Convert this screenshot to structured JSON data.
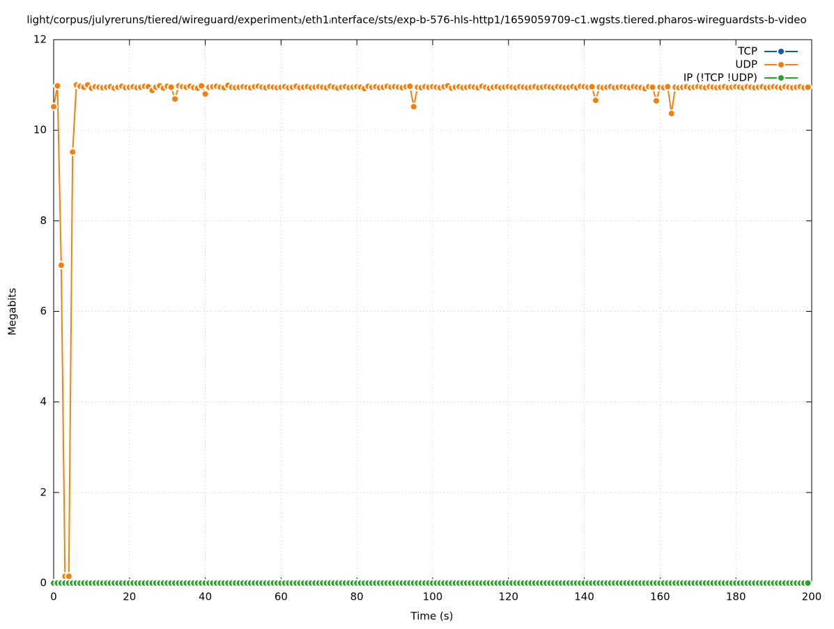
{
  "chart_data": {
    "type": "line",
    "title": "light/corpus/julyreruns/tiered/wireguard/experiment₃/eth1ᵢnterface/sts/exp-b-576-hls-http1/1659059709-c1.wgsts.tiered.pharos-wireguardsts-b-video",
    "x_label": "Time (s)",
    "y_label": "Megabits",
    "x": [
      0,
      1,
      2,
      3,
      4,
      5,
      6,
      7,
      8,
      9,
      10,
      11,
      12,
      13,
      14,
      15,
      16,
      17,
      18,
      19,
      20,
      21,
      22,
      23,
      24,
      25,
      26,
      27,
      28,
      29,
      30,
      31,
      32,
      33,
      34,
      35,
      36,
      37,
      38,
      39,
      40,
      41,
      42,
      43,
      44,
      45,
      46,
      47,
      48,
      49,
      50,
      51,
      52,
      53,
      54,
      55,
      56,
      57,
      58,
      59,
      60,
      61,
      62,
      63,
      64,
      65,
      66,
      67,
      68,
      69,
      70,
      71,
      72,
      73,
      74,
      75,
      76,
      77,
      78,
      79,
      80,
      81,
      82,
      83,
      84,
      85,
      86,
      87,
      88,
      89,
      90,
      91,
      92,
      93,
      94,
      95,
      96,
      97,
      98,
      99,
      100,
      101,
      102,
      103,
      104,
      105,
      106,
      107,
      108,
      109,
      110,
      111,
      112,
      113,
      114,
      115,
      116,
      117,
      118,
      119,
      120,
      121,
      122,
      123,
      124,
      125,
      126,
      127,
      128,
      129,
      130,
      131,
      132,
      133,
      134,
      135,
      136,
      137,
      138,
      139,
      140,
      141,
      142,
      143,
      144,
      145,
      146,
      147,
      148,
      149,
      150,
      151,
      152,
      153,
      154,
      155,
      156,
      157,
      158,
      159,
      160,
      161,
      162,
      163,
      164,
      165,
      166,
      167,
      168,
      169,
      170,
      171,
      172,
      173,
      174,
      175,
      176,
      177,
      178,
      179,
      180,
      181,
      182,
      183,
      184,
      185,
      186,
      187,
      188,
      189,
      190,
      191,
      192,
      193,
      194,
      195,
      196,
      197,
      198,
      199
    ],
    "series": [
      {
        "name": "TCP",
        "color": "#0060ad",
        "values": [
          0,
          0,
          0,
          0,
          0,
          0,
          0,
          0,
          0,
          0,
          0,
          0,
          0,
          0,
          0,
          0,
          0,
          0,
          0,
          0,
          0,
          0,
          0,
          0,
          0,
          0,
          0,
          0,
          0,
          0,
          0,
          0,
          0,
          0,
          0,
          0,
          0,
          0,
          0,
          0,
          0,
          0,
          0,
          0,
          0,
          0,
          0,
          0,
          0,
          0,
          0,
          0,
          0,
          0,
          0,
          0,
          0,
          0,
          0,
          0,
          0,
          0,
          0,
          0,
          0,
          0,
          0,
          0,
          0,
          0,
          0,
          0,
          0,
          0,
          0,
          0,
          0,
          0,
          0,
          0,
          0,
          0,
          0,
          0,
          0,
          0,
          0,
          0,
          0,
          0,
          0,
          0,
          0,
          0,
          0,
          0,
          0,
          0,
          0,
          0,
          0,
          0,
          0,
          0,
          0,
          0,
          0,
          0,
          0,
          0,
          0,
          0,
          0,
          0,
          0,
          0,
          0,
          0,
          0,
          0,
          0,
          0,
          0,
          0,
          0,
          0,
          0,
          0,
          0,
          0,
          0,
          0,
          0,
          0,
          0,
          0,
          0,
          0,
          0,
          0,
          0,
          0,
          0,
          0,
          0,
          0,
          0,
          0,
          0,
          0,
          0,
          0,
          0,
          0,
          0,
          0,
          0,
          0,
          0,
          0,
          0,
          0,
          0,
          0,
          0,
          0,
          0,
          0,
          0,
          0,
          0,
          0,
          0,
          0,
          0,
          0,
          0,
          0,
          0,
          0,
          0,
          0,
          0,
          0,
          0,
          0,
          0,
          0,
          0,
          0,
          0,
          0,
          0,
          0,
          0,
          0,
          0,
          0,
          0,
          0
        ]
      },
      {
        "name": "UDP",
        "color": "#f57f0e",
        "values": [
          10.52,
          10.98,
          7.02,
          0.15,
          0.15,
          9.52,
          11.0,
          10.97,
          10.95,
          11.0,
          10.93,
          10.96,
          10.95,
          10.94,
          10.95,
          10.96,
          10.93,
          10.95,
          10.97,
          10.94,
          10.95,
          10.96,
          10.94,
          10.95,
          10.97,
          10.96,
          10.88,
          10.95,
          10.98,
          10.93,
          10.97,
          10.95,
          10.69,
          10.98,
          10.96,
          10.95,
          10.97,
          10.94,
          10.93,
          10.98,
          10.8,
          10.95,
          10.96,
          10.97,
          10.95,
          10.94,
          10.99,
          10.95,
          10.94,
          10.95,
          10.96,
          10.95,
          10.94,
          10.96,
          10.97,
          10.95,
          10.94,
          10.96,
          10.95,
          10.94,
          10.95,
          10.96,
          10.94,
          10.95,
          10.97,
          10.94,
          10.95,
          10.96,
          10.94,
          10.95,
          10.96,
          10.95,
          10.94,
          10.97,
          10.95,
          10.93,
          10.95,
          10.96,
          10.94,
          10.95,
          10.96,
          10.95,
          10.92,
          10.97,
          10.95,
          10.96,
          10.94,
          10.95,
          10.97,
          10.95,
          10.96,
          10.95,
          10.94,
          10.96,
          10.97,
          10.52,
          10.95,
          10.94,
          10.96,
          10.95,
          10.96,
          10.95,
          10.94,
          10.96,
          10.98,
          10.93,
          10.95,
          10.96,
          10.94,
          10.95,
          10.96,
          10.95,
          10.94,
          10.97,
          10.95,
          10.93,
          10.95,
          10.96,
          10.94,
          10.95,
          10.96,
          10.95,
          10.94,
          10.96,
          10.95,
          10.94,
          10.95,
          10.96,
          10.94,
          10.95,
          10.96,
          10.95,
          10.94,
          10.96,
          10.95,
          10.94,
          10.95,
          10.96,
          10.94,
          10.97,
          10.96,
          10.95,
          10.96,
          10.66,
          10.95,
          10.94,
          10.95,
          10.96,
          10.94,
          10.95,
          10.96,
          10.95,
          10.94,
          10.96,
          10.95,
          10.94,
          10.92,
          10.96,
          10.95,
          10.65,
          10.95,
          10.94,
          10.96,
          10.37,
          10.95,
          10.94,
          10.95,
          10.96,
          10.94,
          10.95,
          10.96,
          10.95,
          10.94,
          10.96,
          10.95,
          10.94,
          10.95,
          10.96,
          10.94,
          10.95,
          10.96,
          10.95,
          10.94,
          10.96,
          10.95,
          10.94,
          10.95,
          10.96,
          10.94,
          10.95,
          10.96,
          10.95,
          10.94,
          10.96,
          10.95,
          10.94,
          10.95,
          10.96,
          10.94,
          10.95
        ]
      },
      {
        "name": "IP (!TCP  !UDP)",
        "color": "#2ca02c",
        "values": [
          0,
          0,
          0,
          0,
          0,
          0,
          0,
          0,
          0,
          0,
          0,
          0,
          0,
          0,
          0,
          0,
          0,
          0,
          0,
          0,
          0,
          0,
          0,
          0,
          0,
          0,
          0,
          0,
          0,
          0,
          0,
          0,
          0,
          0,
          0,
          0,
          0,
          0,
          0,
          0,
          0,
          0,
          0,
          0,
          0,
          0,
          0,
          0,
          0,
          0,
          0,
          0,
          0,
          0,
          0,
          0,
          0,
          0,
          0,
          0,
          0,
          0,
          0,
          0,
          0,
          0,
          0,
          0,
          0,
          0,
          0,
          0,
          0,
          0,
          0,
          0,
          0,
          0,
          0,
          0,
          0,
          0,
          0,
          0,
          0,
          0,
          0,
          0,
          0,
          0,
          0,
          0,
          0,
          0,
          0,
          0,
          0,
          0,
          0,
          0,
          0,
          0,
          0,
          0,
          0,
          0,
          0,
          0,
          0,
          0,
          0,
          0,
          0,
          0,
          0,
          0,
          0,
          0,
          0,
          0,
          0,
          0,
          0,
          0,
          0,
          0,
          0,
          0,
          0,
          0,
          0,
          0,
          0,
          0,
          0,
          0,
          0,
          0,
          0,
          0,
          0,
          0,
          0,
          0,
          0,
          0,
          0,
          0,
          0,
          0,
          0,
          0,
          0,
          0,
          0,
          0,
          0,
          0,
          0,
          0,
          0,
          0,
          0,
          0,
          0,
          0,
          0,
          0,
          0,
          0,
          0,
          0,
          0,
          0,
          0,
          0,
          0,
          0,
          0,
          0,
          0,
          0,
          0,
          0,
          0,
          0,
          0,
          0,
          0,
          0,
          0,
          0,
          0,
          0,
          0,
          0,
          0,
          0,
          0,
          0
        ]
      }
    ],
    "xlim": [
      0,
      200
    ],
    "ylim": [
      0,
      12
    ],
    "xticks": [
      0,
      20,
      40,
      60,
      80,
      100,
      120,
      140,
      160,
      180,
      200
    ],
    "yticks": [
      0,
      2,
      4,
      6,
      8,
      10,
      12
    ],
    "grid": true,
    "legend": "top-right"
  }
}
